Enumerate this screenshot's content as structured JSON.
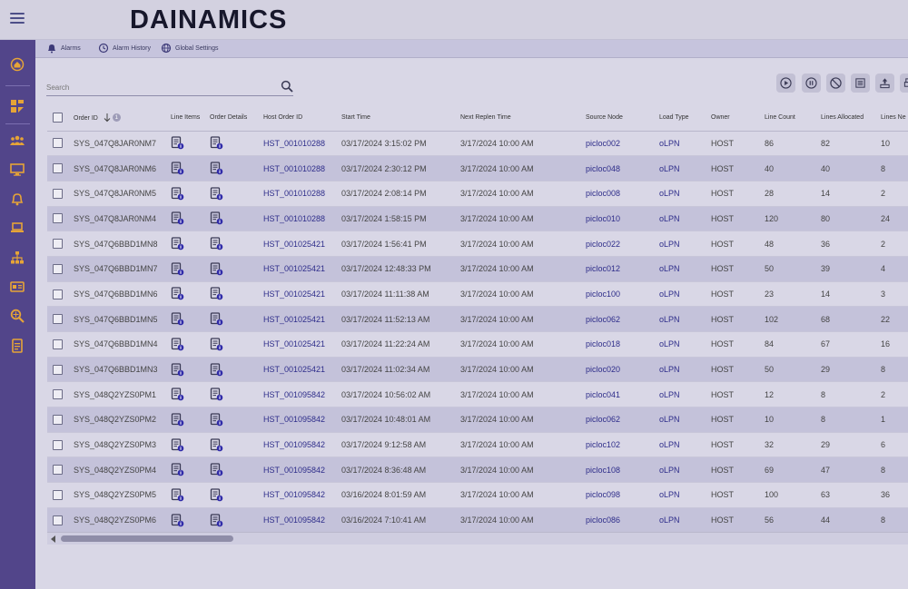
{
  "app": {
    "brand": "DAINAMICS"
  },
  "subnav": [
    {
      "label": "Alarms",
      "icon": "bell-icon"
    },
    {
      "label": "Alarm History",
      "icon": "alarm-history-icon"
    },
    {
      "label": "Global Settings",
      "icon": "globe-settings-icon"
    }
  ],
  "search": {
    "placeholder": "Search"
  },
  "table": {
    "sort_badge": "1",
    "headers": {
      "order_id": "Order ID",
      "line_items": "Line Items",
      "order_details": "Order Details",
      "host_order_id": "Host Order ID",
      "start_time": "Start Time",
      "next_replen_time": "Next Replen Time",
      "source_node": "Source Node",
      "load_type": "Load Type",
      "owner": "Owner",
      "line_count": "Line Count",
      "lines_allocated": "Lines Allocated",
      "lines_new": "Lines Ne"
    },
    "rows": [
      {
        "order_id": "SYS_047Q8JAR0NM7",
        "host_order_id": "HST_001010288",
        "start_time": "03/17/2024 3:15:02 PM",
        "next_replen_time": "3/17/2024  10:00 AM",
        "source_node": "picloc002",
        "load_type": "oLPN",
        "owner": "HOST",
        "line_count": "86",
        "lines_allocated": "82",
        "lines_new": "10"
      },
      {
        "order_id": "SYS_047Q8JAR0NM6",
        "host_order_id": "HST_001010288",
        "start_time": "03/17/2024 2:30:12 PM",
        "next_replen_time": "3/17/2024  10:00 AM",
        "source_node": "picloc048",
        "load_type": "oLPN",
        "owner": "HOST",
        "line_count": "40",
        "lines_allocated": "40",
        "lines_new": "8"
      },
      {
        "order_id": "SYS_047Q8JAR0NM5",
        "host_order_id": "HST_001010288",
        "start_time": "03/17/2024 2:08:14 PM",
        "next_replen_time": "3/17/2024  10:00 AM",
        "source_node": "picloc008",
        "load_type": "oLPN",
        "owner": "HOST",
        "line_count": "28",
        "lines_allocated": "14",
        "lines_new": "2"
      },
      {
        "order_id": "SYS_047Q8JAR0NM4",
        "host_order_id": "HST_001010288",
        "start_time": "03/17/2024 1:58:15 PM",
        "next_replen_time": "3/17/2024  10:00 AM",
        "source_node": "picloc010",
        "load_type": "oLPN",
        "owner": "HOST",
        "line_count": "120",
        "lines_allocated": "80",
        "lines_new": "24"
      },
      {
        "order_id": "SYS_047Q6BBD1MN8",
        "host_order_id": "HST_001025421",
        "start_time": "03/17/2024 1:56:41 PM",
        "next_replen_time": "3/17/2024  10:00 AM",
        "source_node": "picloc022",
        "load_type": "oLPN",
        "owner": "HOST",
        "line_count": "48",
        "lines_allocated": "36",
        "lines_new": "2"
      },
      {
        "order_id": "SYS_047Q6BBD1MN7",
        "host_order_id": "HST_001025421",
        "start_time": "03/17/2024 12:48:33 PM",
        "next_replen_time": "3/17/2024  10:00 AM",
        "source_node": "picloc012",
        "load_type": "oLPN",
        "owner": "HOST",
        "line_count": "50",
        "lines_allocated": "39",
        "lines_new": "4"
      },
      {
        "order_id": "SYS_047Q6BBD1MN6",
        "host_order_id": "HST_001025421",
        "start_time": "03/17/2024 11:11:38 AM",
        "next_replen_time": "3/17/2024  10:00 AM",
        "source_node": "picloc100",
        "load_type": "oLPN",
        "owner": "HOST",
        "line_count": "23",
        "lines_allocated": "14",
        "lines_new": "3"
      },
      {
        "order_id": "SYS_047Q6BBD1MN5",
        "host_order_id": "HST_001025421",
        "start_time": "03/17/2024 11:52:13 AM",
        "next_replen_time": "3/17/2024  10:00 AM",
        "source_node": "picloc062",
        "load_type": "oLPN",
        "owner": "HOST",
        "line_count": "102",
        "lines_allocated": "68",
        "lines_new": "22"
      },
      {
        "order_id": "SYS_047Q6BBD1MN4",
        "host_order_id": "HST_001025421",
        "start_time": "03/17/2024 11:22:24 AM",
        "next_replen_time": "3/17/2024  10:00 AM",
        "source_node": "picloc018",
        "load_type": "oLPN",
        "owner": "HOST",
        "line_count": "84",
        "lines_allocated": "67",
        "lines_new": "16"
      },
      {
        "order_id": "SYS_047Q6BBD1MN3",
        "host_order_id": "HST_001025421",
        "start_time": "03/17/2024 11:02:34 AM",
        "next_replen_time": "3/17/2024  10:00 AM",
        "source_node": "picloc020",
        "load_type": "oLPN",
        "owner": "HOST",
        "line_count": "50",
        "lines_allocated": "29",
        "lines_new": "8"
      },
      {
        "order_id": "SYS_048Q2YZS0PM1",
        "host_order_id": "HST_001095842",
        "start_time": "03/17/2024 10:56:02 AM",
        "next_replen_time": "3/17/2024  10:00 AM",
        "source_node": "picloc041",
        "load_type": "oLPN",
        "owner": "HOST",
        "line_count": "12",
        "lines_allocated": "8",
        "lines_new": "2"
      },
      {
        "order_id": "SYS_048Q2YZS0PM2",
        "host_order_id": "HST_001095842",
        "start_time": "03/17/2024 10:48:01 AM",
        "next_replen_time": "3/17/2024  10:00 AM",
        "source_node": "picloc062",
        "load_type": "oLPN",
        "owner": "HOST",
        "line_count": "10",
        "lines_allocated": "8",
        "lines_new": "1"
      },
      {
        "order_id": "SYS_048Q2YZS0PM3",
        "host_order_id": "HST_001095842",
        "start_time": "03/17/2024 9:12:58 AM",
        "next_replen_time": "3/17/2024  10:00 AM",
        "source_node": "picloc102",
        "load_type": "oLPN",
        "owner": "HOST",
        "line_count": "32",
        "lines_allocated": "29",
        "lines_new": "6"
      },
      {
        "order_id": "SYS_048Q2YZS0PM4",
        "host_order_id": "HST_001095842",
        "start_time": "03/17/2024 8:36:48 AM",
        "next_replen_time": "3/17/2024  10:00 AM",
        "source_node": "picloc108",
        "load_type": "oLPN",
        "owner": "HOST",
        "line_count": "69",
        "lines_allocated": "47",
        "lines_new": "8"
      },
      {
        "order_id": "SYS_048Q2YZS0PM5",
        "host_order_id": "HST_001095842",
        "start_time": "03/16/2024 8:01:59 AM",
        "next_replen_time": "3/17/2024  10:00 AM",
        "source_node": "picloc098",
        "load_type": "oLPN",
        "owner": "HOST",
        "line_count": "100",
        "lines_allocated": "63",
        "lines_new": "36"
      },
      {
        "order_id": "SYS_048Q2YZS0PM6",
        "host_order_id": "HST_001095842",
        "start_time": "03/16/2024 7:10:41 AM",
        "next_replen_time": "3/17/2024  10:00 AM",
        "source_node": "picloc086",
        "load_type": "oLPN",
        "owner": "HOST",
        "line_count": "56",
        "lines_allocated": "44",
        "lines_new": "8"
      }
    ]
  },
  "colors": {
    "sidebar": "#52458a",
    "sidebar_icon": "#e6a437",
    "link": "#2e2d8a",
    "accent_badge": "#2f2aa8"
  }
}
